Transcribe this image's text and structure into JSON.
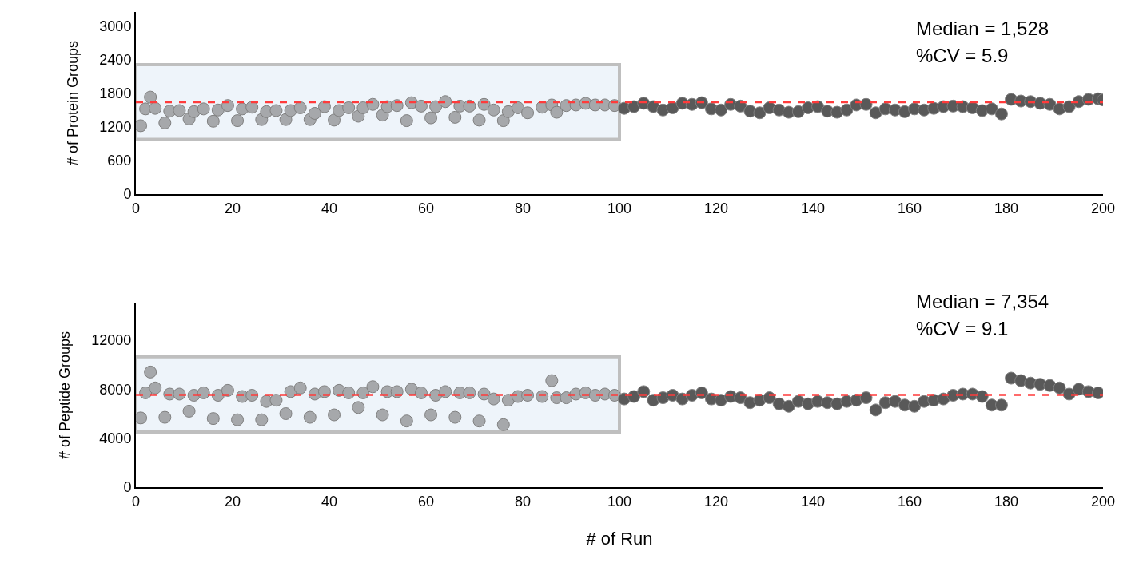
{
  "chart_data": [
    {
      "type": "scatter",
      "ylabel": "# of Protein Groups",
      "xlim": [
        0,
        200
      ],
      "xticks": [
        0,
        20,
        40,
        60,
        80,
        100,
        120,
        140,
        160,
        180,
        200
      ],
      "ylim": [
        0,
        3250
      ],
      "yticks": [
        0,
        600,
        1200,
        1800,
        2400,
        3000
      ],
      "marker": "circle",
      "annotations": [
        "Median = 1,528",
        "%CV = 5.9"
      ],
      "ref_lines": [
        {
          "axis": "y",
          "value": 1640,
          "color": "#ff3b3b",
          "line_style": "dashed"
        }
      ],
      "bands": [
        {
          "axis": "x",
          "from": 0,
          "to": 100,
          "color": "#eef4fa"
        }
      ],
      "series": [
        {
          "color": "#a6a8ab",
          "x": [
            1,
            2,
            3,
            4,
            6,
            7,
            9,
            11,
            12,
            14,
            16,
            17,
            19,
            21,
            22,
            24,
            26,
            27,
            29,
            31,
            32,
            34,
            36,
            37,
            39,
            41,
            42,
            44,
            46,
            47,
            49,
            51,
            52,
            54,
            56,
            57,
            59,
            61,
            62,
            64,
            66,
            67,
            69,
            71,
            72,
            74,
            76,
            77,
            79,
            81,
            84,
            86,
            87,
            89,
            91,
            93,
            95,
            97,
            99
          ],
          "values": [
            1220,
            1520,
            1730,
            1530,
            1270,
            1480,
            1490,
            1340,
            1470,
            1520,
            1300,
            1500,
            1580,
            1310,
            1520,
            1550,
            1330,
            1470,
            1490,
            1330,
            1490,
            1540,
            1330,
            1440,
            1560,
            1320,
            1490,
            1540,
            1390,
            1540,
            1600,
            1410,
            1560,
            1580,
            1310,
            1630,
            1570,
            1360,
            1560,
            1650,
            1370,
            1570,
            1570,
            1320,
            1600,
            1500,
            1310,
            1470,
            1540,
            1450,
            1550,
            1590,
            1460,
            1580,
            1590,
            1620,
            1590,
            1590,
            1580
          ]
        },
        {
          "color": "#595959",
          "x": [
            101,
            103,
            105,
            107,
            109,
            111,
            113,
            115,
            117,
            119,
            121,
            123,
            125,
            127,
            129,
            131,
            133,
            135,
            137,
            139,
            141,
            143,
            145,
            147,
            149,
            151,
            153,
            155,
            157,
            159,
            161,
            163,
            165,
            167,
            169,
            171,
            173,
            175,
            177,
            179,
            181,
            183,
            185,
            187,
            189,
            191,
            193,
            195,
            197,
            199,
            200
          ],
          "values": [
            1530,
            1560,
            1620,
            1560,
            1500,
            1540,
            1620,
            1600,
            1630,
            1520,
            1500,
            1600,
            1570,
            1480,
            1450,
            1540,
            1500,
            1460,
            1470,
            1540,
            1560,
            1480,
            1460,
            1500,
            1590,
            1600,
            1450,
            1520,
            1500,
            1470,
            1520,
            1500,
            1530,
            1560,
            1570,
            1560,
            1540,
            1490,
            1520,
            1430,
            1690,
            1660,
            1650,
            1620,
            1600,
            1520,
            1560,
            1650,
            1690,
            1700,
            1680
          ]
        }
      ]
    },
    {
      "type": "scatter",
      "ylabel": "# of Peptide Groups",
      "xlabel": "# of Run",
      "xlim": [
        0,
        200
      ],
      "xticks": [
        0,
        20,
        40,
        60,
        80,
        100,
        120,
        140,
        160,
        180,
        200
      ],
      "ylim": [
        0,
        15000
      ],
      "yticks": [
        0,
        4000,
        8000,
        12000
      ],
      "marker": "circle",
      "annotations": [
        "Median = 7,354",
        "%CV = 9.1"
      ],
      "ref_lines": [
        {
          "axis": "y",
          "value": 7540,
          "color": "#ff3b3b",
          "line_style": "dashed"
        }
      ],
      "bands": [
        {
          "axis": "x",
          "from": 0,
          "to": 100,
          "color": "#eef4fa"
        }
      ],
      "series": [
        {
          "color": "#a6a8ab",
          "x": [
            1,
            2,
            3,
            4,
            6,
            7,
            9,
            11,
            12,
            14,
            16,
            17,
            19,
            21,
            22,
            24,
            26,
            27,
            29,
            31,
            32,
            34,
            36,
            37,
            39,
            41,
            42,
            44,
            46,
            47,
            49,
            51,
            52,
            54,
            56,
            57,
            59,
            61,
            62,
            64,
            66,
            67,
            69,
            71,
            72,
            74,
            76,
            77,
            79,
            81,
            84,
            86,
            87,
            89,
            91,
            93,
            95,
            97,
            99
          ],
          "values": [
            5650,
            7700,
            9400,
            8100,
            5700,
            7600,
            7600,
            6200,
            7500,
            7700,
            5600,
            7500,
            7900,
            5500,
            7400,
            7500,
            5500,
            7000,
            7100,
            6000,
            7800,
            8100,
            5700,
            7600,
            7800,
            5900,
            7900,
            7700,
            6500,
            7700,
            8200,
            5900,
            7800,
            7800,
            5400,
            8000,
            7700,
            5900,
            7500,
            7800,
            5700,
            7700,
            7700,
            5400,
            7600,
            7200,
            5100,
            7100,
            7400,
            7500,
            7400,
            8700,
            7300,
            7300,
            7600,
            7700,
            7500,
            7600,
            7500
          ]
        },
        {
          "color": "#595959",
          "x": [
            101,
            103,
            105,
            107,
            109,
            111,
            113,
            115,
            117,
            119,
            121,
            123,
            125,
            127,
            129,
            131,
            133,
            135,
            137,
            139,
            141,
            143,
            145,
            147,
            149,
            151,
            153,
            155,
            157,
            159,
            161,
            163,
            165,
            167,
            169,
            171,
            173,
            175,
            177,
            179,
            181,
            183,
            185,
            187,
            189,
            191,
            193,
            195,
            197,
            199
          ],
          "values": [
            7200,
            7400,
            7800,
            7100,
            7300,
            7500,
            7200,
            7500,
            7700,
            7200,
            7100,
            7400,
            7300,
            6900,
            7100,
            7300,
            6800,
            6600,
            7000,
            6800,
            7000,
            6900,
            6800,
            7000,
            7100,
            7300,
            6300,
            6900,
            7000,
            6700,
            6600,
            7000,
            7100,
            7200,
            7500,
            7600,
            7600,
            7400,
            6700,
            6700,
            8900,
            8700,
            8500,
            8400,
            8300,
            8100,
            7600,
            8000,
            7800,
            7700
          ]
        }
      ]
    }
  ]
}
